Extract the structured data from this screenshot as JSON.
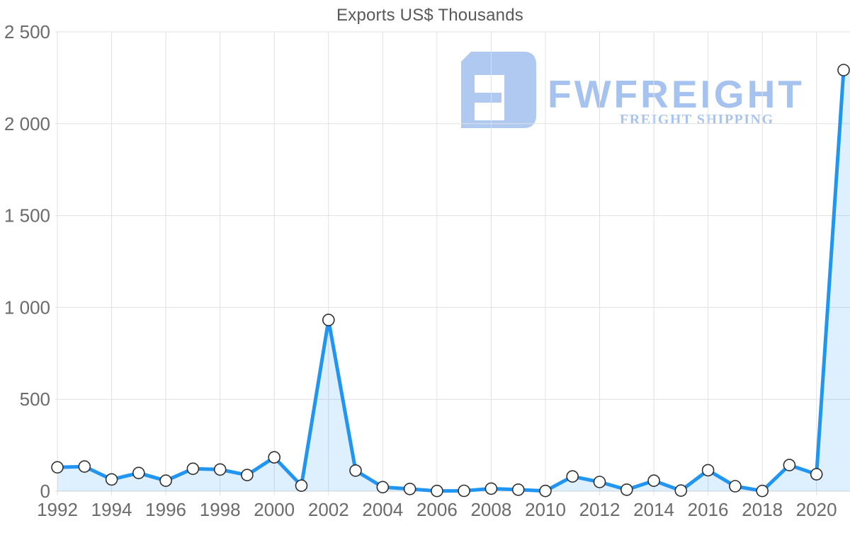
{
  "page": {
    "background": "#ffffff"
  },
  "watermark": {
    "brand": "FWFREIGHT",
    "tagline": "FREIGHT SHIPPING",
    "text_color": "#a6c3ef",
    "glyph_color": "#b0c9f1"
  },
  "chart_data": {
    "type": "area",
    "title": "Exports US$ Thousands",
    "x": [
      1992,
      1993,
      1994,
      1995,
      1996,
      1997,
      1998,
      1999,
      2000,
      2001,
      2002,
      2003,
      2004,
      2005,
      2006,
      2007,
      2008,
      2009,
      2010,
      2011,
      2012,
      2013,
      2014,
      2015,
      2016,
      2017,
      2018,
      2019,
      2020,
      2021
    ],
    "values": [
      130,
      134,
      64,
      99,
      57,
      122,
      118,
      88,
      184,
      30,
      932,
      112,
      22,
      12,
      1,
      2,
      14,
      8,
      1,
      80,
      50,
      8,
      57,
      3,
      114,
      27,
      1,
      142,
      92,
      2292
    ],
    "series_name": "Exports US$ Thousands",
    "x_tick_values": [
      1992,
      1994,
      1996,
      1998,
      2000,
      2002,
      2004,
      2006,
      2008,
      2010,
      2012,
      2014,
      2016,
      2018,
      2020
    ],
    "x_tick_labels": [
      "1992",
      "1994",
      "1996",
      "1998",
      "2000",
      "2002",
      "2004",
      "2006",
      "2008",
      "2010",
      "2012",
      "2014",
      "2016",
      "2018",
      "2020"
    ],
    "y_tick_values": [
      0,
      500,
      1000,
      1500,
      2000,
      2500
    ],
    "y_tick_labels": [
      "0",
      "500",
      "1 000",
      "1 500",
      "2 000",
      "2 500"
    ],
    "xlim": [
      1992,
      2021.25
    ],
    "ylim": [
      0,
      2500
    ],
    "grid": true,
    "legend": "none",
    "colors": {
      "line": "#2095f2",
      "area_fill": "rgba(32,149,242,0.15)",
      "marker_fill": "#ffffff",
      "marker_stroke": "#2f2f2f",
      "gridline": "#e1e1e1",
      "baseline": "#d8d8d8",
      "tick_label": "#6b6b6b",
      "title": "#595959"
    }
  }
}
